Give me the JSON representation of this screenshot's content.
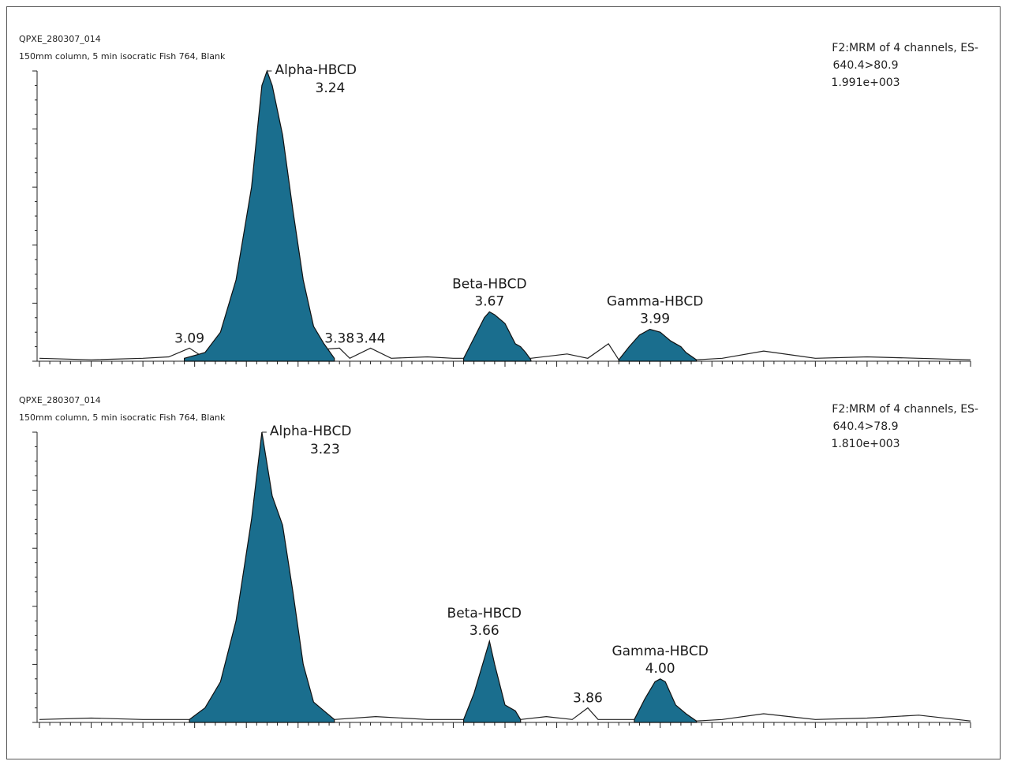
{
  "chart_data": [
    {
      "type": "area",
      "file": "QPXE_280307_014",
      "description": "150mm column, 5 min isocratic Fish 764, Blank",
      "info": [
        "F2:MRM of 4 channels, ES-",
        "640.4>80.9",
        "1.991e+003"
      ],
      "fill_color": "#1a6e8e",
      "x_range": [
        2.8,
        4.6
      ],
      "y_range": [
        0,
        100
      ],
      "filled_peaks": [
        {
          "x": [
            3.08,
            3.12,
            3.15,
            3.18,
            3.21,
            3.23,
            3.24,
            3.25,
            3.27,
            3.29,
            3.31,
            3.33,
            3.35,
            3.37
          ],
          "y": [
            1,
            3,
            10,
            28,
            60,
            95,
            100,
            95,
            78,
            52,
            28,
            12,
            6,
            1
          ]
        },
        {
          "x": [
            3.62,
            3.64,
            3.66,
            3.67,
            3.68,
            3.7,
            3.72,
            3.73,
            3.74,
            3.75
          ],
          "y": [
            1,
            8,
            15,
            17,
            16,
            13,
            6,
            5,
            3,
            0.5
          ]
        },
        {
          "x": [
            3.92,
            3.94,
            3.96,
            3.98,
            4.0,
            4.02,
            4.04,
            4.05,
            4.07
          ],
          "y": [
            0.5,
            5,
            9,
            11,
            10,
            7,
            5,
            3,
            0.5
          ]
        }
      ],
      "baseline": {
        "x": [
          2.8,
          2.9,
          3.0,
          3.05,
          3.09,
          3.12,
          3.38,
          3.4,
          3.44,
          3.48,
          3.55,
          3.6,
          3.75,
          3.82,
          3.86,
          3.9,
          3.92,
          4.07,
          4.12,
          4.2,
          4.3,
          4.4,
          4.5,
          4.6
        ],
        "y": [
          1,
          0.5,
          1,
          1.5,
          4.5,
          1,
          4.5,
          1,
          4.5,
          1,
          1.5,
          1,
          1,
          2.5,
          1,
          6,
          0.5,
          0.5,
          1,
          3.5,
          1,
          1.5,
          1,
          0.5
        ]
      },
      "peak_labels": [
        {
          "name": "Alpha-HBCD",
          "rt": "3.24",
          "x": 3.24,
          "y": 100
        },
        {
          "name": "",
          "rt": "3.09",
          "x": 3.09,
          "y": 4.5
        },
        {
          "name": "",
          "rt": "3.38",
          "x": 3.38,
          "y": 4.5
        },
        {
          "name": "",
          "rt": "3.44",
          "x": 3.44,
          "y": 4.5
        },
        {
          "name": "Beta-HBCD",
          "rt": "3.67",
          "x": 3.67,
          "y": 17
        },
        {
          "name": "Gamma-HBCD",
          "rt": "3.99",
          "x": 3.99,
          "y": 11
        }
      ]
    },
    {
      "type": "area",
      "file": "QPXE_280307_014",
      "description": "150mm column, 5 min isocratic Fish 764, Blank",
      "info": [
        "F2:MRM of 4 channels, ES-",
        "640.4>78.9",
        "1.810e+003"
      ],
      "fill_color": "#1a6e8e",
      "x_range": [
        2.8,
        4.6
      ],
      "y_range": [
        0,
        100
      ],
      "filled_peaks": [
        {
          "x": [
            3.09,
            3.12,
            3.15,
            3.18,
            3.21,
            3.23,
            3.25,
            3.27,
            3.29,
            3.31,
            3.33,
            3.35,
            3.37
          ],
          "y": [
            1,
            5,
            14,
            35,
            70,
            100,
            78,
            68,
            45,
            20,
            7,
            4,
            1
          ]
        },
        {
          "x": [
            3.62,
            3.64,
            3.66,
            3.67,
            3.68,
            3.7,
            3.72,
            3.73
          ],
          "y": [
            1,
            10,
            22,
            28,
            20,
            6,
            4,
            1
          ]
        },
        {
          "x": [
            3.95,
            3.97,
            3.99,
            4.0,
            4.01,
            4.03,
            4.05,
            4.07
          ],
          "y": [
            1,
            8,
            14,
            15,
            14,
            6,
            3,
            0.5
          ]
        }
      ],
      "baseline": {
        "x": [
          2.8,
          2.9,
          3.0,
          3.09,
          3.37,
          3.45,
          3.55,
          3.62,
          3.73,
          3.78,
          3.83,
          3.86,
          3.88,
          3.95,
          4.07,
          4.12,
          4.2,
          4.3,
          4.4,
          4.5,
          4.6
        ],
        "y": [
          1,
          1.5,
          1,
          1,
          1,
          2,
          1,
          1,
          1,
          2,
          1,
          5,
          1,
          1,
          0.5,
          1,
          3,
          1,
          1.5,
          2.5,
          0.5
        ]
      },
      "peak_labels": [
        {
          "name": "Alpha-HBCD",
          "rt": "3.23",
          "x": 3.23,
          "y": 100
        },
        {
          "name": "Beta-HBCD",
          "rt": "3.66",
          "x": 3.66,
          "y": 28
        },
        {
          "name": "",
          "rt": "3.86",
          "x": 3.86,
          "y": 5
        },
        {
          "name": "Gamma-HBCD",
          "rt": "4.00",
          "x": 4.0,
          "y": 15
        }
      ]
    }
  ]
}
